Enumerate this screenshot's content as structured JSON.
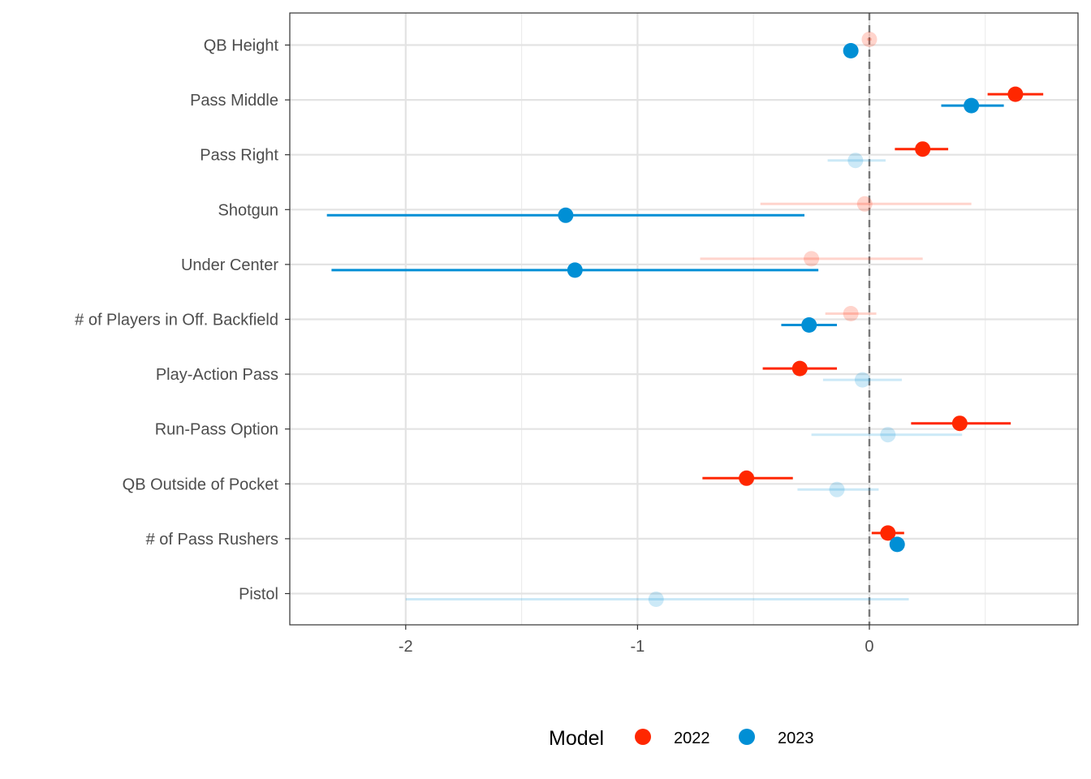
{
  "chart_data": {
    "type": "dot-interval",
    "title": "",
    "xlabel": "",
    "ylabel": "",
    "xlim": [
      -2.5,
      0.9
    ],
    "xticks": [
      -2,
      -1,
      0
    ],
    "reference_line_x": 0,
    "grid": true,
    "legend": {
      "title": "Model",
      "position": "bottom"
    },
    "categories": [
      "QB Height",
      "Pass Middle",
      "Pass Right",
      "Shotgun",
      "Under Center",
      "# of Players in Off. Backfield",
      "Play-Action Pass",
      "Run-Pass Option",
      "QB Outside of Pocket",
      "# of Pass Rushers",
      "Pistol"
    ],
    "series": [
      {
        "name": "2022",
        "color": "#FF2700",
        "estimate": [
          0.0,
          0.63,
          0.23,
          -0.02,
          -0.25,
          -0.08,
          -0.3,
          0.39,
          -0.53,
          0.08,
          null
        ],
        "lower": [
          -0.01,
          0.51,
          0.11,
          -0.47,
          -0.73,
          -0.19,
          -0.46,
          0.18,
          -0.72,
          0.01,
          null
        ],
        "upper": [
          0.01,
          0.75,
          0.34,
          0.44,
          0.23,
          0.03,
          -0.14,
          0.61,
          -0.33,
          0.15,
          null
        ],
        "significant": [
          false,
          true,
          true,
          false,
          false,
          false,
          true,
          true,
          true,
          true,
          null
        ]
      },
      {
        "name": "2023",
        "color": "#008FD5",
        "estimate": [
          -0.08,
          0.44,
          -0.06,
          -1.31,
          -1.27,
          -0.26,
          -0.03,
          0.08,
          -0.14,
          0.12,
          -0.92
        ],
        "lower": [
          -0.09,
          0.31,
          -0.18,
          -2.34,
          -2.32,
          -0.38,
          -0.2,
          -0.25,
          -0.31,
          0.11,
          -2.0
        ],
        "upper": [
          -0.07,
          0.58,
          0.07,
          -0.28,
          -0.22,
          -0.14,
          0.14,
          0.4,
          0.04,
          0.14,
          0.17
        ],
        "significant": [
          true,
          true,
          false,
          true,
          true,
          true,
          false,
          false,
          false,
          true,
          false
        ]
      }
    ]
  }
}
